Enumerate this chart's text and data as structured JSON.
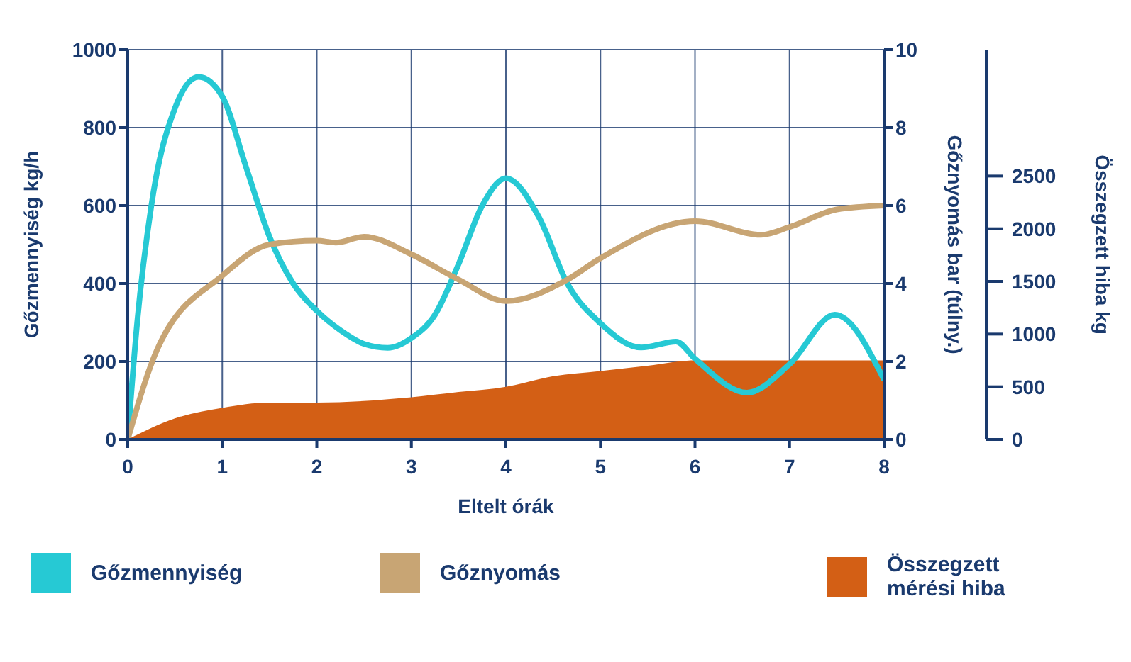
{
  "chart_data": {
    "type": "line",
    "xlabel": "Eltelt órák",
    "ylabel": "Gőzmennyiség kg/h",
    "y2label": "Gőznyomás bar (túlny.)",
    "y3label": "Összegzett hiba kg",
    "xlim": [
      0,
      8
    ],
    "xticks": [
      0,
      1,
      2,
      3,
      4,
      5,
      6,
      7,
      8
    ],
    "ylim": [
      0,
      1000
    ],
    "yticks": [
      0,
      200,
      400,
      600,
      800,
      1000
    ],
    "y2lim": [
      0,
      10
    ],
    "y2ticks": [
      0,
      2,
      4,
      6,
      8,
      10
    ],
    "y3lim": [
      0,
      3700
    ],
    "y3ticks": [
      0,
      500,
      1000,
      1500,
      2000,
      2500
    ],
    "grid": true,
    "legend": "bottom",
    "series": [
      {
        "name": "Gőzmennyiség",
        "color": "#26c9d4",
        "x": [
          0,
          0.1,
          0.25,
          0.5,
          0.75,
          1,
          1.25,
          1.5,
          1.75,
          2,
          2.25,
          2.5,
          2.75,
          3,
          3.25,
          3.5,
          3.75,
          4,
          4.35,
          4.65,
          5,
          5.43,
          5.8,
          6,
          6.55,
          7,
          7.48,
          8
        ],
        "values": [
          0,
          300,
          600,
          850,
          930,
          880,
          700,
          520,
          400,
          330,
          280,
          245,
          235,
          260,
          320,
          450,
          600,
          670,
          570,
          400,
          298,
          236,
          251,
          207,
          120,
          193,
          320,
          153
        ]
      },
      {
        "name": "Gőznyomás",
        "axis": "y2",
        "color": "#c8a574",
        "x": [
          0,
          0.31,
          1,
          1.5,
          2,
          2.2,
          2.5,
          3,
          3.5,
          4,
          4.65,
          5,
          6,
          6.7,
          7,
          7.5,
          8
        ],
        "values": [
          0,
          2.3,
          4.2,
          5.0,
          5.1,
          5.05,
          5.2,
          4.75,
          4.1,
          3.55,
          4.1,
          4.65,
          5.6,
          5.25,
          5.45,
          5.9,
          6.0
        ]
      },
      {
        "name": "Összegzett mérési hiba",
        "type": "area",
        "axis": "y3",
        "color": "#d35f15",
        "x": [
          0,
          0.5,
          1,
          1.5,
          2,
          3,
          3.5,
          4,
          4.5,
          5,
          5.5,
          6,
          7,
          8
        ],
        "values": [
          0,
          200,
          300,
          350,
          350,
          400,
          450,
          500,
          600,
          650,
          700,
          750,
          750,
          750
        ]
      }
    ]
  }
}
